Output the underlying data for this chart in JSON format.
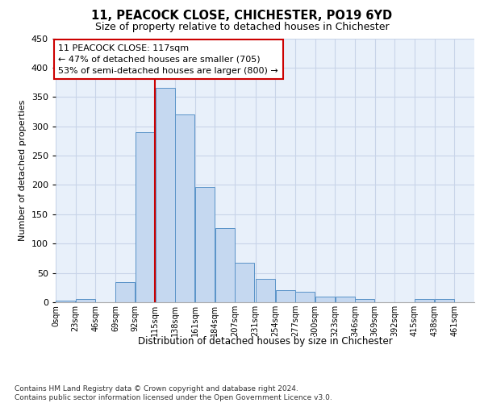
{
  "title": "11, PEACOCK CLOSE, CHICHESTER, PO19 6YD",
  "subtitle": "Size of property relative to detached houses in Chichester",
  "xlabel": "Distribution of detached houses by size in Chichester",
  "ylabel": "Number of detached properties",
  "bin_labels": [
    "0sqm",
    "23sqm",
    "46sqm",
    "69sqm",
    "92sqm",
    "115sqm",
    "138sqm",
    "161sqm",
    "184sqm",
    "207sqm",
    "231sqm",
    "254sqm",
    "277sqm",
    "300sqm",
    "323sqm",
    "346sqm",
    "369sqm",
    "392sqm",
    "415sqm",
    "438sqm",
    "461sqm"
  ],
  "bin_edges": [
    0,
    23,
    46,
    69,
    92,
    115,
    138,
    161,
    184,
    207,
    231,
    254,
    277,
    300,
    323,
    346,
    369,
    392,
    415,
    438,
    461
  ],
  "bar_heights": [
    3,
    5,
    0,
    35,
    290,
    365,
    320,
    197,
    127,
    68,
    40,
    20,
    18,
    10,
    10,
    5,
    0,
    0,
    5,
    5,
    0
  ],
  "bar_color": "#c5d8f0",
  "bar_edge_color": "#5a93c8",
  "grid_color": "#c8d4e8",
  "vline_x": 115,
  "vline_color": "#cc0000",
  "annotation_text": "11 PEACOCK CLOSE: 117sqm\n← 47% of detached houses are smaller (705)\n53% of semi-detached houses are larger (800) →",
  "annotation_box_color": "#ffffff",
  "annotation_box_edge": "#cc0000",
  "ylim": [
    0,
    450
  ],
  "yticks": [
    0,
    50,
    100,
    150,
    200,
    250,
    300,
    350,
    400,
    450
  ],
  "footer_text": "Contains HM Land Registry data © Crown copyright and database right 2024.\nContains public sector information licensed under the Open Government Licence v3.0.",
  "bg_color": "#e8f0fa"
}
